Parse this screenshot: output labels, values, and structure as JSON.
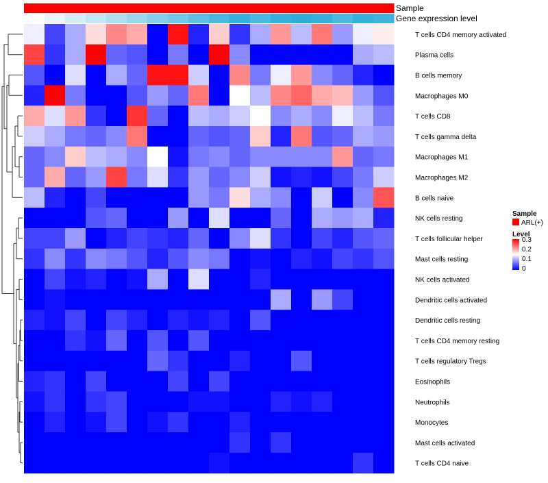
{
  "chart_data": {
    "type": "heatmap",
    "title": "",
    "xlabel": "",
    "ylabel": "",
    "columns": 18,
    "rows": [
      "T cells CD4 memory activated",
      "Plasma cells",
      "B cells memory",
      "Macrophages M0",
      "T cells CD8",
      "T cells gamma delta",
      "Macrophages M1",
      "Macrophages M2",
      "B cells naive",
      "NK cells resting",
      "T cells follicular helper",
      "Mast cells resting",
      "NK cells activated",
      "Dendritic cells activated",
      "Dendritic cells resting",
      "T cells CD4 memory resting",
      "T cells regulatory  Tregs",
      "Eosinophils",
      "Neutrophils",
      "Monocytes",
      "Mast cells activated",
      "T cells CD4 naive"
    ],
    "values": [
      [
        0.14,
        0.04,
        0.1,
        0.17,
        0.22,
        0.2,
        0.0,
        0.29,
        0.02,
        0.18,
        0.03,
        0.1,
        0.21,
        0.11,
        0.23,
        0.09,
        0.14,
        0.16
      ],
      [
        0.26,
        0.03,
        0.1,
        0.3,
        0.06,
        0.05,
        0.0,
        0.07,
        0.0,
        0.3,
        0.08,
        0.0,
        0.0,
        0.0,
        0.0,
        0.0,
        0.1,
        0.11
      ],
      [
        0.05,
        0.0,
        0.13,
        0.0,
        0.1,
        0.06,
        0.29,
        0.29,
        0.12,
        0.0,
        0.22,
        0.07,
        0.14,
        0.21,
        0.08,
        0.06,
        0.02,
        0.0
      ],
      [
        0.02,
        0.3,
        0.07,
        0.0,
        0.0,
        0.05,
        0.09,
        0.06,
        0.23,
        0.0,
        0.15,
        0.11,
        0.22,
        0.24,
        0.2,
        0.19,
        0.09,
        0.05
      ],
      [
        0.2,
        0.13,
        0.21,
        0.03,
        0.0,
        0.27,
        0.06,
        0.0,
        0.11,
        0.1,
        0.12,
        0.15,
        0.08,
        0.1,
        0.08,
        0.14,
        0.11,
        0.07
      ],
      [
        0.12,
        0.1,
        0.07,
        0.06,
        0.08,
        0.23,
        0.0,
        0.0,
        0.06,
        0.05,
        0.06,
        0.18,
        0.02,
        0.23,
        0.05,
        0.06,
        0.1,
        0.09
      ],
      [
        0.06,
        0.08,
        0.18,
        0.11,
        0.1,
        0.08,
        0.15,
        0.01,
        0.07,
        0.08,
        0.06,
        0.08,
        0.08,
        0.08,
        0.08,
        0.21,
        0.06,
        0.07
      ],
      [
        0.06,
        0.2,
        0.06,
        0.09,
        0.26,
        0.07,
        0.13,
        0.03,
        0.09,
        0.06,
        0.08,
        0.12,
        0.01,
        0.02,
        0.01,
        0.04,
        0.07,
        0.12
      ],
      [
        0.11,
        0.02,
        0.0,
        0.04,
        0.0,
        0.0,
        0.0,
        0.0,
        0.09,
        0.07,
        0.17,
        0.1,
        0.08,
        0.0,
        0.12,
        0.0,
        0.08,
        0.25
      ],
      [
        0.0,
        0.0,
        0.0,
        0.05,
        0.06,
        0.0,
        0.0,
        0.09,
        0.0,
        0.13,
        0.0,
        0.0,
        0.06,
        0.0,
        0.1,
        0.09,
        0.1,
        0.02
      ],
      [
        0.04,
        0.04,
        0.09,
        0.0,
        0.02,
        0.04,
        0.03,
        0.02,
        0.06,
        0.0,
        0.08,
        0.13,
        0.03,
        0.0,
        0.04,
        0.02,
        0.05,
        0.06
      ],
      [
        0.03,
        0.08,
        0.03,
        0.08,
        0.07,
        0.05,
        0.02,
        0.05,
        0.08,
        0.07,
        0.0,
        0.01,
        0.0,
        0.02,
        0.01,
        0.04,
        0.03,
        0.05
      ],
      [
        0.0,
        0.04,
        0.01,
        0.02,
        0.0,
        0.01,
        0.1,
        0.0,
        0.13,
        0.0,
        0.0,
        0.02,
        0.0,
        0.0,
        0.0,
        0.0,
        0.0,
        0.0
      ],
      [
        0.0,
        0.01,
        0.0,
        0.0,
        0.0,
        0.0,
        0.0,
        0.0,
        0.0,
        0.0,
        0.0,
        0.0,
        0.1,
        0.0,
        0.09,
        0.04,
        0.0,
        0.0
      ],
      [
        0.02,
        0.01,
        0.04,
        0.0,
        0.04,
        0.02,
        0.0,
        0.02,
        0.01,
        0.02,
        0.0,
        0.05,
        0.0,
        0.0,
        0.0,
        0.0,
        0.0,
        0.0
      ],
      [
        0.0,
        0.0,
        0.03,
        0.01,
        0.06,
        0.0,
        0.05,
        0.0,
        0.05,
        0.0,
        0.0,
        0.0,
        0.0,
        0.0,
        0.0,
        0.0,
        0.0,
        0.0
      ],
      [
        0.0,
        0.0,
        0.0,
        0.0,
        0.0,
        0.0,
        0.06,
        0.03,
        0.0,
        0.0,
        0.02,
        0.0,
        0.0,
        0.05,
        0.0,
        0.0,
        0.0,
        0.0
      ],
      [
        0.02,
        0.03,
        0.0,
        0.04,
        0.0,
        0.0,
        0.0,
        0.04,
        0.0,
        0.04,
        0.0,
        0.0,
        0.0,
        0.0,
        0.0,
        0.0,
        0.0,
        0.0
      ],
      [
        0.01,
        0.03,
        0.0,
        0.03,
        0.04,
        0.0,
        0.0,
        0.0,
        0.01,
        0.01,
        0.0,
        0.0,
        0.02,
        0.01,
        0.02,
        0.0,
        0.0,
        0.0
      ],
      [
        0.0,
        0.02,
        0.0,
        0.01,
        0.04,
        0.0,
        0.01,
        0.03,
        0.0,
        0.0,
        0.02,
        0.0,
        0.0,
        0.0,
        0.0,
        0.0,
        0.0,
        0.0
      ],
      [
        0.0,
        0.0,
        0.0,
        0.0,
        0.0,
        0.0,
        0.0,
        0.0,
        0.0,
        0.0,
        0.03,
        0.0,
        0.03,
        0.0,
        0.0,
        0.0,
        0.0,
        0.0
      ],
      [
        0.0,
        0.0,
        0.0,
        0.0,
        0.0,
        0.0,
        0.0,
        0.0,
        0.0,
        0.01,
        0.0,
        0.0,
        0.0,
        0.0,
        0.0,
        0.0,
        0.03,
        0.0
      ]
    ],
    "color_scale": {
      "min": 0,
      "mid": 0.15,
      "max": 0.3,
      "low": "#0000ff",
      "midcolor": "#ffffff",
      "high": "#ff0000"
    },
    "annotations": [
      {
        "name": "Sample",
        "color": "#ff0000"
      },
      {
        "name": "Gene expression level",
        "colors": [
          "#ffffff",
          "#eaf6fb",
          "#d6eef8",
          "#c2e6f4",
          "#aedff1",
          "#9ad7ed",
          "#86cfea",
          "#72c8e7",
          "#5ec0e3",
          "#4ab8e0",
          "#36b0dc",
          "#4ab8e0",
          "#36b0dc",
          "#2fadda",
          "#36b0dc",
          "#4ab8e0",
          "#36b0dc",
          "#3fb3dd"
        ]
      }
    ],
    "legend": {
      "sample_title": "Sample",
      "sample_entry": "ARL(+)",
      "sample_color": "#ff0000",
      "level_title": "Level",
      "ticks": [
        "0.3",
        "0.2",
        "0.1",
        "0"
      ]
    }
  }
}
